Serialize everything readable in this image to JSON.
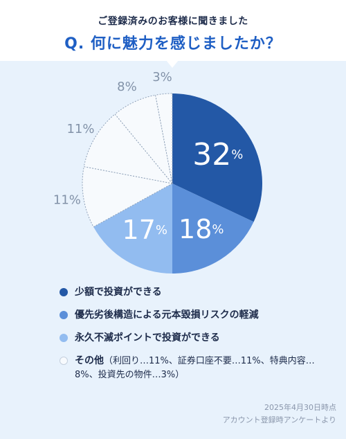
{
  "header": {
    "subtitle": "ご登録済みのお客様に聞きました",
    "title": "Q. 何に魅力を感じましたか？"
  },
  "colors": {
    "slice_1": "#2358a6",
    "slice_2": "#5b8fd9",
    "slice_3": "#92bcf0",
    "other": "#f7fafd",
    "other_border": "#8fa1b8",
    "outer_label": "#8292a8",
    "background": "#e8f2fc"
  },
  "chart_data": {
    "type": "pie",
    "start": "12 o'clock, clockwise",
    "slices": [
      {
        "name": "少額で投資ができる",
        "value": 32,
        "label": "32",
        "unit": "%"
      },
      {
        "name": "優先劣後構造による元本毀損リスクの軽減",
        "value": 18,
        "label": "18",
        "unit": "%"
      },
      {
        "name": "永久不滅ポイントで投資ができる",
        "value": 17,
        "label": "17",
        "unit": "%"
      },
      {
        "name": "利回り",
        "value": 11,
        "label": "11%",
        "group": "その他"
      },
      {
        "name": "証券口座不要",
        "value": 11,
        "label": "11%",
        "group": "その他"
      },
      {
        "name": "特典内容",
        "value": 8,
        "label": "8%",
        "group": "その他"
      },
      {
        "name": "投資先の物件",
        "value": 3,
        "label": "3%",
        "group": "その他"
      }
    ]
  },
  "legend": {
    "items": [
      {
        "label": "少額で投資ができる",
        "color": "#2358a6"
      },
      {
        "label": "優先劣後構造による元本毀損リスクの軽減",
        "color": "#5b8fd9"
      },
      {
        "label": "永久不滅ポイントで投資ができる",
        "color": "#92bcf0"
      }
    ],
    "other_label": "その他",
    "other_detail": "（利回り…11%、証券口座不要…11%、特典内容…8%、投資先の物件…3%）"
  },
  "footer": {
    "date": "2025年4月30日時点",
    "source": "アカウント登録時アンケートより"
  }
}
